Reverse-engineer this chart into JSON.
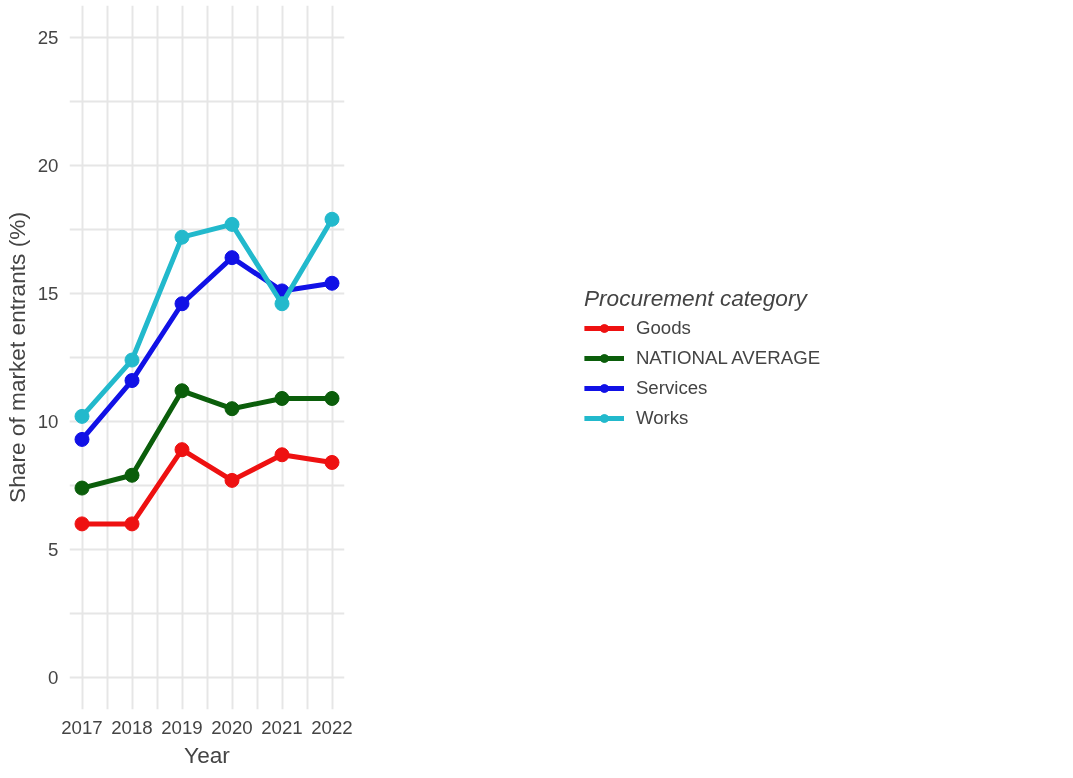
{
  "chart_data": {
    "type": "line",
    "xlabel": "Year",
    "ylabel": "Share of market entrants (%)",
    "legend_title": "Procurement category",
    "legend": "right",
    "grid": true,
    "marker": "circle",
    "line_style": "solid",
    "x": [
      2017,
      2018,
      2019,
      2020,
      2021,
      2022
    ],
    "xlim": [
      2016.75,
      2022.25
    ],
    "ylim": [
      -1.25,
      26.25
    ],
    "xticks": [
      2017,
      {
        "value": 2017.5,
        "label": null
      },
      2018,
      {
        "value": 2018.5,
        "label": null
      },
      2019,
      {
        "value": 2019.5,
        "label": null
      },
      2020,
      {
        "value": 2020.5,
        "label": null
      },
      2021,
      {
        "value": 2021.5,
        "label": null
      },
      2022
    ],
    "yticks": [
      0,
      {
        "value": 2.5,
        "label": null
      },
      5,
      {
        "value": 7.5,
        "label": null
      },
      10,
      {
        "value": 12.5,
        "label": null
      },
      15,
      {
        "value": 17.5,
        "label": null
      },
      20,
      {
        "value": 22.5,
        "label": null
      },
      25
    ],
    "series": [
      {
        "name": "Goods",
        "color": "#ee1111",
        "values": [
          6.0,
          6.0,
          8.9,
          7.7,
          8.7,
          8.4
        ]
      },
      {
        "name": "NATIONAL AVERAGE",
        "color": "#0b5e0b",
        "values": [
          7.4,
          7.9,
          11.2,
          10.5,
          10.9,
          10.9
        ]
      },
      {
        "name": "Services",
        "color": "#1111e6",
        "values": [
          9.3,
          11.6,
          14.6,
          16.4,
          15.1,
          15.4
        ]
      },
      {
        "name": "Works",
        "color": "#22b9cc",
        "values": [
          10.2,
          12.4,
          17.2,
          17.7,
          14.6,
          17.9
        ]
      }
    ]
  }
}
